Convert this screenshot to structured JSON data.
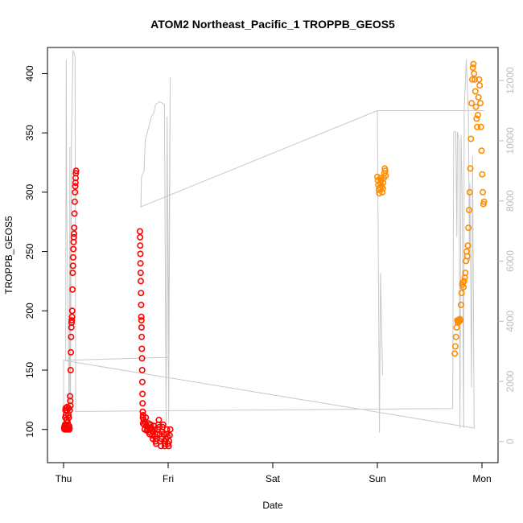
{
  "chart_data": {
    "type": "scatter",
    "title": "ATOM2 Northeast_Pacific_1 TROPPB_GEOS5",
    "xlabel": "Date",
    "ylabel": "TROPPB_GEOS5",
    "x_range_days": [
      0,
      4.15
    ],
    "x_ticks": [
      {
        "day": 0,
        "label": "Thu"
      },
      {
        "day": 1,
        "label": "Fri"
      },
      {
        "day": 2,
        "label": "Sat"
      },
      {
        "day": 3,
        "label": "Sun"
      },
      {
        "day": 4,
        "label": "Mon"
      }
    ],
    "ylim": [
      72,
      422
    ],
    "y_ticks": [
      100,
      150,
      200,
      250,
      300,
      350,
      400
    ],
    "y2lim": [
      -700,
      13100
    ],
    "y2_ticks": [
      0,
      2000,
      4000,
      6000,
      8000,
      10000,
      12000
    ],
    "y2_label": "",
    "colors": {
      "series_a": "#ff0000",
      "series_b": "#ff8c00",
      "altitude": "#c8c8c8"
    },
    "series": [
      {
        "color": "#ff0000",
        "segments": [
          {
            "x_start": 0.005,
            "x_end": 0.12,
            "values": [
              101,
              102,
              100,
              103,
              104,
              110,
              116,
              118,
              112,
              104,
              100,
              102,
              108,
              116,
              119,
              106,
              101,
              100,
              104,
              112,
              118,
              110,
              103,
              100,
              101,
              116,
              128,
              124,
              120,
              150,
              165,
              178,
              186,
              190,
              192,
              195,
              200,
              218,
              232,
              238,
              245,
              252,
              258,
              262,
              265,
              270,
              282,
              292,
              300,
              305,
              308,
              312,
              316,
              318
            ]
          },
          {
            "x_start": 0.73,
            "x_end": 0.76,
            "values": [
              267,
              262,
              255,
              248,
              240,
              232,
              225,
              215,
              205,
              195,
              192,
              186,
              178,
              168,
              160,
              150,
              140,
              130,
              122,
              115,
              110,
              105
            ]
          },
          {
            "x_start": 0.76,
            "x_end": 1.02,
            "values": [
              112,
              108,
              104,
              100,
              106,
              110,
              103,
              99,
              100,
              102,
              105,
              98,
              96,
              100,
              104,
              101,
              99,
              95,
              92,
              98,
              103,
              100,
              94,
              90,
              88,
              92,
              96,
              100,
              104,
              108,
              102,
              96,
              90,
              86,
              92,
              98,
              102,
              104,
              96,
              90,
              86,
              88,
              92,
              96,
              100,
              94,
              88,
              86,
              90,
              95,
              100
            ]
          }
        ]
      },
      {
        "color": "#ff8c00",
        "segments": [
          {
            "x_start": 3.0,
            "x_end": 3.08,
            "values": [
              313,
              310,
              306,
              302,
              299,
              304,
              308,
              312,
              310,
              305,
              300,
              303,
              308,
              312,
              316,
              320,
              318,
              314
            ]
          },
          {
            "x_start": 3.74,
            "x_end": 4.02,
            "values": [
              164,
              170,
              178,
              186,
              192,
              190,
              192,
              191,
              193,
              192,
              205,
              215,
              222,
              224,
              220,
              225,
              228,
              232,
              242,
              250,
              246,
              255,
              270,
              285,
              300,
              320,
              345,
              375,
              395,
              405,
              408,
              400,
              395,
              385,
              372,
              362,
              355,
              365,
              380,
              395,
              390,
              375,
              355,
              335,
              315,
              300,
              290,
              292
            ]
          }
        ]
      }
    ],
    "altitude_path": [
      [
        0.0,
        450
      ],
      [
        0.0,
        2700
      ],
      [
        0.02,
        2700
      ],
      [
        0.025,
        12700
      ],
      [
        0.03,
        8000
      ],
      [
        0.055,
        450
      ],
      [
        0.06,
        9800
      ],
      [
        0.065,
        450
      ],
      [
        0.075,
        10000
      ],
      [
        0.09,
        13000
      ],
      [
        0.11,
        12800
      ],
      [
        0.115,
        1000
      ],
      [
        0.12,
        1000
      ],
      [
        3.72,
        1100
      ],
      [
        3.73,
        10300
      ],
      [
        3.75,
        10300
      ],
      [
        3.76,
        6800
      ],
      [
        3.765,
        10300
      ],
      [
        3.78,
        10000
      ],
      [
        3.79,
        450
      ],
      [
        3.8,
        10200
      ],
      [
        3.81,
        8400
      ],
      [
        3.825,
        450
      ],
      [
        3.83,
        11000
      ],
      [
        3.85,
        12700
      ],
      [
        3.87,
        11000
      ],
      [
        3.88,
        6000
      ],
      [
        3.885,
        8600
      ],
      [
        3.9,
        1800
      ],
      [
        3.91,
        9500
      ],
      [
        3.925,
        450
      ],
      [
        0.0,
        2700
      ],
      [
        1.0,
        2800
      ],
      [
        1.02,
        12100
      ],
      [
        1.005,
        600
      ],
      [
        0.99,
        10800
      ],
      [
        0.98,
        600
      ],
      [
        0.965,
        11200
      ],
      [
        0.92,
        11300
      ],
      [
        0.88,
        11200
      ],
      [
        0.86,
        10900
      ],
      [
        0.84,
        10800
      ],
      [
        0.78,
        10000
      ],
      [
        0.77,
        9000
      ],
      [
        0.745,
        8800
      ],
      [
        0.74,
        7800
      ],
      [
        0.735,
        7800
      ],
      [
        3.0,
        11000
      ],
      [
        4.02,
        11000
      ],
      [
        3.0,
        11000
      ],
      [
        3.02,
        300
      ],
      [
        3.03,
        5600
      ],
      [
        3.05,
        2200
      ]
    ]
  }
}
